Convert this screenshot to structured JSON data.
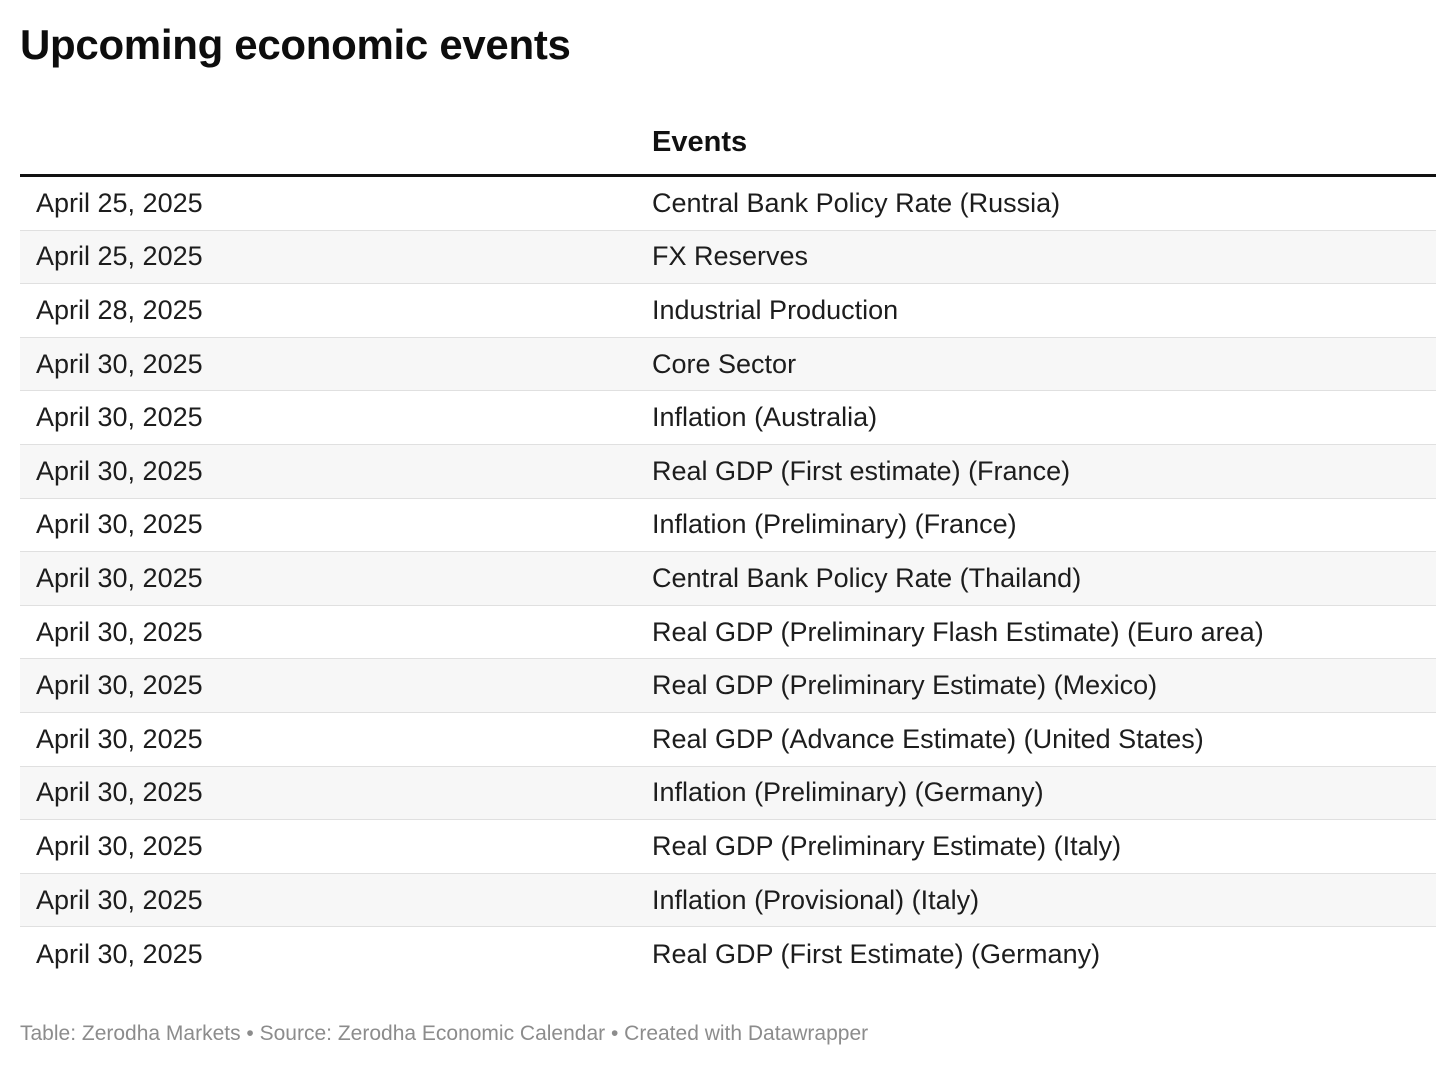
{
  "title": "Upcoming economic events",
  "table": {
    "columns": [
      "",
      "Events"
    ],
    "rows": [
      {
        "date": "April 25, 2025",
        "event": "Central Bank Policy Rate (Russia)"
      },
      {
        "date": "April 25, 2025",
        "event": "FX Reserves"
      },
      {
        "date": "April 28, 2025",
        "event": "Industrial Production"
      },
      {
        "date": "April 30, 2025",
        "event": "Core Sector"
      },
      {
        "date": "April 30, 2025",
        "event": "Inflation (Australia)"
      },
      {
        "date": "April 30, 2025",
        "event": "Real GDP (First estimate) (France)"
      },
      {
        "date": "April 30, 2025",
        "event": "Inflation (Preliminary) (France)"
      },
      {
        "date": "April 30, 2025",
        "event": "Central Bank Policy Rate (Thailand)"
      },
      {
        "date": "April 30, 2025",
        "event": "Real GDP (Preliminary Flash Estimate) (Euro area)"
      },
      {
        "date": "April 30, 2025",
        "event": "Real GDP (Preliminary Estimate) (Mexico)"
      },
      {
        "date": "April 30, 2025",
        "event": "Real GDP (Advance Estimate) (United States)"
      },
      {
        "date": "April 30, 2025",
        "event": "Inflation (Preliminary) (Germany)"
      },
      {
        "date": "April 30, 2025",
        "event": "Real GDP (Preliminary Estimate) (Italy)"
      },
      {
        "date": "April 30, 2025",
        "event": "Inflation (Provisional) (Italy)"
      },
      {
        "date": "April 30, 2025",
        "event": "Real GDP (First Estimate) (Germany)"
      }
    ]
  },
  "footer": "Table: Zerodha Markets • Source: Zerodha Economic Calendar • Created with Datawrapper",
  "colors": {
    "header_rule": "#111111",
    "row_alt_bg": "#f7f7f7",
    "row_divider": "#e0e0e0",
    "footer_text": "#8c8c8c"
  }
}
